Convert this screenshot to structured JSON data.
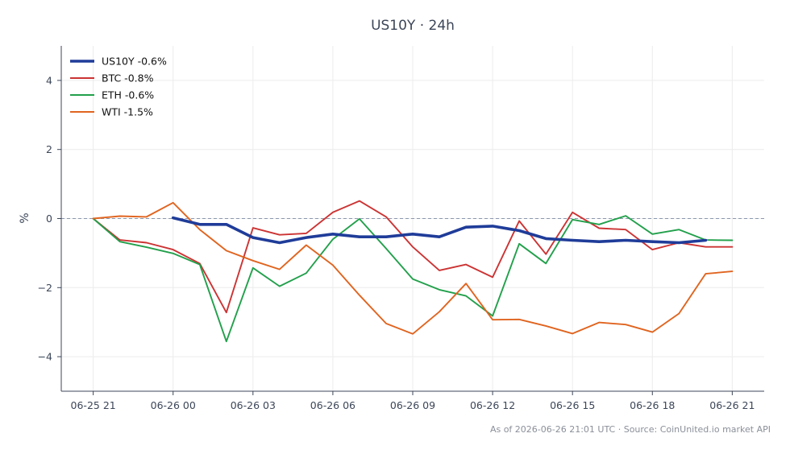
{
  "chart_data": {
    "type": "line",
    "title": "US10Y · 24h",
    "ylabel": "%",
    "xlabel": "",
    "x_ticks": [
      "06-25 21",
      "06-26 00",
      "06-26 03",
      "06-26 06",
      "06-26 09",
      "06-26 12",
      "06-26 15",
      "06-26 18",
      "06-26 21"
    ],
    "y_ticks": [
      -4,
      -2,
      0,
      2,
      4
    ],
    "ylim": [
      -5,
      5
    ],
    "x_range_hours": [
      -1.2,
      25.2
    ],
    "grid": true,
    "zero_line": true,
    "legend_position": "top-left",
    "series": [
      {
        "name": "US10Y -0.6%",
        "color": "#1f3c99",
        "x": [
          3,
          4,
          5,
          6,
          7,
          8,
          9,
          10,
          11,
          12,
          13,
          14,
          15,
          16,
          17,
          18,
          19,
          20,
          21,
          22,
          23
        ],
        "values": [
          0.02,
          -0.17,
          -0.17,
          -0.55,
          -0.7,
          -0.55,
          -0.45,
          -0.53,
          -0.53,
          -0.45,
          -0.53,
          -0.25,
          -0.22,
          -0.35,
          -0.58,
          -0.63,
          -0.67,
          -0.63,
          -0.67,
          -0.7,
          -0.63
        ]
      },
      {
        "name": "BTC -0.8%",
        "color": "#cc3333",
        "x": [
          0,
          1,
          2,
          3,
          4,
          5,
          6,
          7,
          8,
          9,
          10,
          11,
          12,
          13,
          14,
          15,
          16,
          17,
          18,
          19,
          20,
          21,
          22,
          23,
          24
        ],
        "values": [
          0.0,
          -0.62,
          -0.7,
          -0.9,
          -1.3,
          -2.72,
          -0.27,
          -0.47,
          -0.43,
          0.18,
          0.51,
          0.05,
          -0.82,
          -1.5,
          -1.33,
          -1.7,
          -0.07,
          -1.03,
          0.18,
          -0.28,
          -0.32,
          -0.9,
          -0.7,
          -0.82,
          -0.82
        ]
      },
      {
        "name": "ETH -0.6%",
        "color": "#22a04b",
        "x": [
          0,
          1,
          2,
          3,
          4,
          5,
          6,
          7,
          8,
          9,
          10,
          11,
          12,
          13,
          14,
          15,
          16,
          17,
          18,
          19,
          20,
          21,
          22,
          23,
          24
        ],
        "values": [
          0.0,
          -0.67,
          -0.83,
          -1.01,
          -1.33,
          -3.56,
          -1.43,
          -1.96,
          -1.58,
          -0.6,
          -0.01,
          -0.87,
          -1.75,
          -2.06,
          -2.24,
          -2.82,
          -0.73,
          -1.3,
          -0.03,
          -0.17,
          0.08,
          -0.45,
          -0.32,
          -0.62,
          -0.63
        ]
      },
      {
        "name": "WTI -1.5%",
        "color": "#e0641f",
        "x": [
          0,
          1,
          2,
          3,
          4,
          5,
          6,
          7,
          8,
          9,
          10,
          11,
          12,
          13,
          14,
          15,
          16,
          17,
          18,
          19,
          20,
          21,
          22,
          23,
          24
        ],
        "values": [
          0.0,
          0.07,
          0.05,
          0.46,
          -0.32,
          -0.93,
          -1.22,
          -1.47,
          -0.77,
          -1.35,
          -2.22,
          -3.04,
          -3.34,
          -2.7,
          -1.88,
          -2.93,
          -2.92,
          -3.11,
          -3.33,
          -3.01,
          -3.07,
          -3.29,
          -2.75,
          -1.6,
          -1.53
        ]
      }
    ]
  },
  "footer": {
    "caption": "As of 2026-06-26 21:01 UTC · Source: CoinUnited.io market API"
  }
}
